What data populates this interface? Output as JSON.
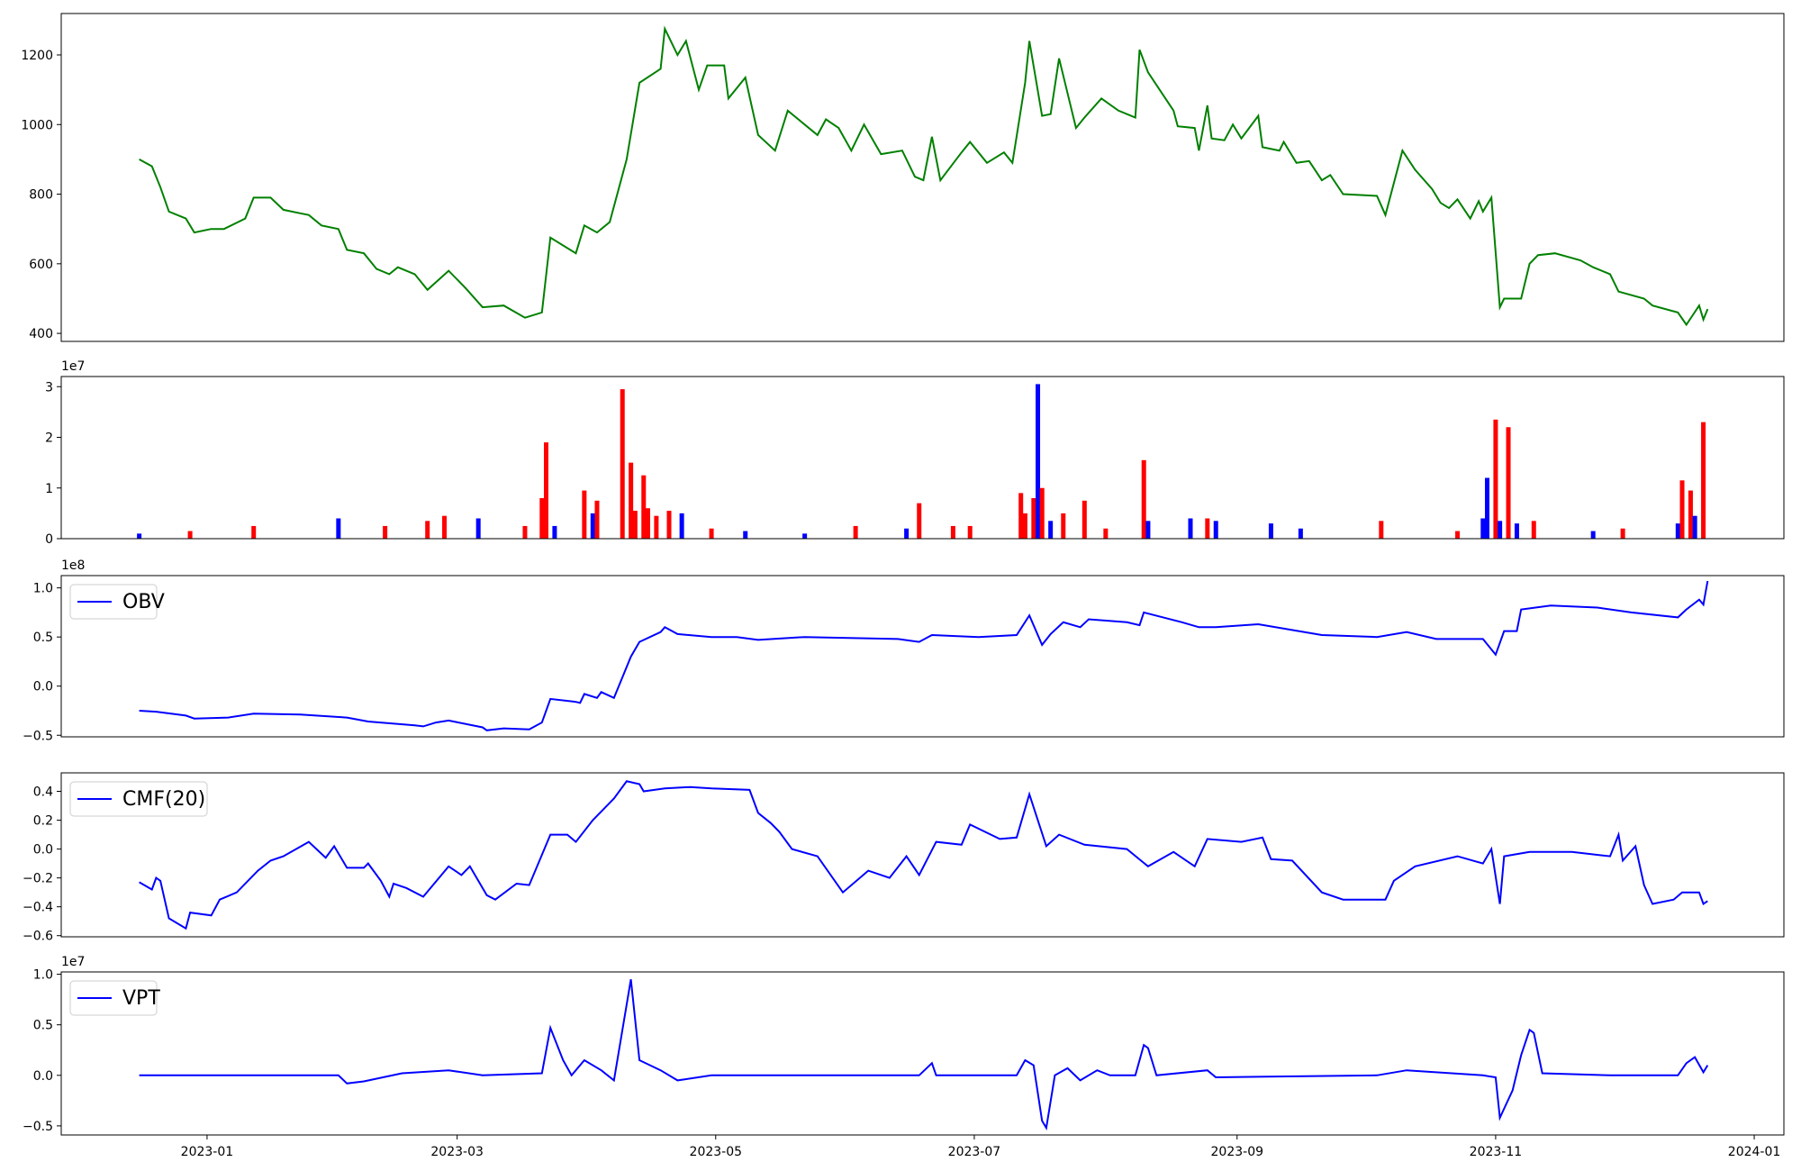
{
  "chart_data": [
    {
      "type": "line",
      "color": "#008000",
      "xlim": [
        -34.4,
        372
      ],
      "ylim": [
        377,
        1319
      ],
      "yticks": [
        400,
        600,
        800,
        1000,
        1200
      ],
      "x": [
        -16,
        -13,
        -11,
        -9,
        -5,
        -3,
        1,
        4,
        9,
        11,
        15,
        18,
        22,
        24,
        27,
        31,
        33,
        37,
        40,
        43,
        45,
        49,
        52,
        57,
        61,
        65,
        70,
        75,
        79,
        81,
        87,
        89,
        92,
        95,
        99,
        102,
        107,
        108,
        111,
        113,
        116,
        118,
        122,
        123,
        127,
        130,
        134,
        137,
        141,
        144,
        146,
        149,
        152,
        155,
        159,
        164,
        167,
        169,
        171,
        173,
        178,
        180,
        184,
        188,
        190,
        193,
        194,
        197,
        199,
        201,
        205,
        207,
        211,
        215,
        219,
        220,
        222,
        228,
        229,
        233,
        234,
        236,
        237,
        240,
        242,
        244,
        248,
        249,
        253,
        254,
        257,
        260,
        263,
        265,
        268,
        276,
        278,
        282,
        285,
        289,
        291,
        293,
        295,
        298,
        300,
        301,
        303,
        305,
        306,
        310,
        312,
        314,
        318,
        324,
        327,
        331,
        333,
        339,
        341,
        347,
        349,
        352,
        353,
        354
      ],
      "values": [
        900,
        880,
        820,
        750,
        730,
        690,
        700,
        700,
        730,
        790,
        790,
        755,
        745,
        740,
        710,
        700,
        640,
        630,
        585,
        570,
        590,
        570,
        525,
        580,
        530,
        475,
        480,
        445,
        460,
        675,
        630,
        710,
        690,
        720,
        900,
        1120,
        1160,
        1275,
        1200,
        1240,
        1100,
        1170,
        1170,
        1075,
        1135,
        970,
        925,
        1040,
        1000,
        970,
        1015,
        990,
        925,
        1000,
        915,
        925,
        850,
        840,
        965,
        840,
        920,
        950,
        890,
        920,
        890,
        1120,
        1240,
        1025,
        1030,
        1190,
        990,
        1020,
        1075,
        1040,
        1020,
        1215,
        1150,
        1040,
        995,
        990,
        925,
        1055,
        960,
        955,
        1000,
        960,
        1025,
        935,
        925,
        950,
        890,
        895,
        840,
        855,
        800,
        795,
        740,
        925,
        870,
        815,
        775,
        760,
        785,
        730,
        780,
        750,
        790,
        475,
        500,
        500,
        600,
        625,
        630,
        610,
        590,
        570,
        520,
        500,
        480,
        460,
        425,
        480,
        440,
        470
      ]
    },
    {
      "type": "bar",
      "offset_label": "1e7",
      "xlim": [
        -34.4,
        372
      ],
      "ylim": [
        0,
        3.2
      ],
      "yticks": [
        0,
        1,
        2,
        3
      ],
      "x": [
        -16,
        -4,
        11,
        31,
        42,
        52,
        56,
        64,
        75,
        79,
        80,
        82,
        89,
        91,
        92,
        98,
        100,
        101,
        103,
        104,
        106,
        109,
        112,
        119,
        127,
        141,
        153,
        165,
        168,
        176,
        180,
        192,
        193,
        195,
        196,
        197,
        199,
        202,
        207,
        212,
        221,
        222,
        232,
        236,
        238,
        251,
        258,
        277,
        295,
        301,
        302,
        304,
        305,
        307,
        309,
        313,
        327,
        334,
        347,
        348,
        350,
        351,
        353
      ],
      "values": [
        0.1,
        0.15,
        0.25,
        0.4,
        0.25,
        0.35,
        0.45,
        0.4,
        0.25,
        0.8,
        1.9,
        0.25,
        0.95,
        0.5,
        0.75,
        2.95,
        1.5,
        0.55,
        1.25,
        0.6,
        0.45,
        0.55,
        0.5,
        0.2,
        0.15,
        0.1,
        0.25,
        0.2,
        0.7,
        0.25,
        0.25,
        0.9,
        0.5,
        0.8,
        3.05,
        1.0,
        0.35,
        0.5,
        0.75,
        0.2,
        1.55,
        0.35,
        0.4,
        0.4,
        0.35,
        0.3,
        0.2,
        0.35,
        0.15,
        0.4,
        1.2,
        2.35,
        0.35,
        2.2,
        0.3,
        0.35,
        0.15,
        0.2,
        0.3,
        1.15,
        0.95,
        0.45,
        2.3
      ],
      "colors": [
        "#0000ff",
        "#ff0000",
        "#ff0000",
        "#0000ff",
        "#ff0000",
        "#ff0000",
        "#ff0000",
        "#0000ff",
        "#ff0000",
        "#ff0000",
        "#ff0000",
        "#0000ff",
        "#ff0000",
        "#0000ff",
        "#ff0000",
        "#ff0000",
        "#ff0000",
        "#ff0000",
        "#ff0000",
        "#ff0000",
        "#ff0000",
        "#ff0000",
        "#0000ff",
        "#ff0000",
        "#0000ff",
        "#0000ff",
        "#ff0000",
        "#0000ff",
        "#ff0000",
        "#ff0000",
        "#ff0000",
        "#ff0000",
        "#ff0000",
        "#ff0000",
        "#0000ff",
        "#ff0000",
        "#0000ff",
        "#ff0000",
        "#ff0000",
        "#ff0000",
        "#ff0000",
        "#0000ff",
        "#0000ff",
        "#ff0000",
        "#0000ff",
        "#0000ff",
        "#0000ff",
        "#ff0000",
        "#ff0000",
        "#0000ff",
        "#0000ff",
        "#ff0000",
        "#0000ff",
        "#ff0000",
        "#0000ff",
        "#ff0000",
        "#0000ff",
        "#ff0000",
        "#0000ff",
        "#ff0000",
        "#ff0000",
        "#0000ff",
        "#ff0000"
      ]
    },
    {
      "type": "line",
      "offset_label": "1e8",
      "legend": "upper left",
      "xlim": [
        -34.4,
        372
      ],
      "ylim": [
        -0.516,
        1.125
      ],
      "yticks": [
        {
          "value": -0.5,
          "label": "−0.5"
        },
        {
          "value": 0,
          "label": "0.0"
        },
        0.5,
        {
          "value": 1,
          "label": "1.0"
        }
      ],
      "x": [
        -16,
        -12,
        -5,
        -3,
        5,
        11,
        22,
        33,
        38,
        49,
        51,
        54,
        57,
        65,
        66,
        70,
        76,
        79,
        81,
        87,
        88,
        89,
        92,
        93,
        96,
        100,
        102,
        107,
        108,
        111,
        119,
        125,
        130,
        141,
        163,
        168,
        171,
        182,
        191,
        194,
        197,
        199,
        202,
        206,
        208,
        217,
        220,
        221,
        230,
        234,
        238,
        248,
        263,
        276,
        283,
        290,
        301,
        304,
        306,
        309,
        310,
        317,
        328,
        336,
        347,
        349,
        352,
        353,
        354
      ],
      "series": [
        {
          "name": "OBV",
          "color": "#0000ff",
          "values": [
            -0.25,
            -0.26,
            -0.3,
            -0.33,
            -0.32,
            -0.28,
            -0.29,
            -0.32,
            -0.36,
            -0.4,
            -0.41,
            -0.37,
            -0.35,
            -0.42,
            -0.45,
            -0.43,
            -0.44,
            -0.37,
            -0.13,
            -0.16,
            -0.17,
            -0.08,
            -0.12,
            -0.06,
            -0.12,
            0.3,
            0.45,
            0.55,
            0.6,
            0.53,
            0.5,
            0.5,
            0.47,
            0.5,
            0.48,
            0.45,
            0.52,
            0.5,
            0.52,
            0.72,
            0.42,
            0.53,
            0.65,
            0.6,
            0.68,
            0.65,
            0.62,
            0.75,
            0.65,
            0.6,
            0.6,
            0.63,
            0.52,
            0.5,
            0.55,
            0.48,
            0.48,
            0.32,
            0.56,
            0.56,
            0.78,
            0.82,
            0.8,
            0.75,
            0.7,
            0.78,
            0.88,
            0.83,
            1.07
          ]
        }
      ]
    },
    {
      "type": "line",
      "legend": "upper left",
      "xlim": [
        -34.4,
        372
      ],
      "ylim": [
        -0.608,
        0.528
      ],
      "yticks": [
        {
          "value": -0.6,
          "label": "−0.6"
        },
        {
          "value": -0.4,
          "label": "−0.4"
        },
        {
          "value": -0.2,
          "label": "−0.2"
        },
        {
          "value": 0,
          "label": "0.0"
        },
        0.2,
        0.4
      ],
      "x": [
        -16,
        -13,
        -12,
        -11,
        -9,
        -5,
        -4,
        1,
        3,
        7,
        12,
        15,
        18,
        24,
        28,
        30,
        33,
        37,
        38,
        41,
        43,
        44,
        47,
        51,
        57,
        60,
        62,
        66,
        68,
        73,
        76,
        81,
        85,
        87,
        91,
        96,
        99,
        102,
        103,
        108,
        114,
        119,
        128,
        130,
        133,
        135,
        138,
        144,
        150,
        156,
        161,
        165,
        168,
        172,
        178,
        180,
        187,
        191,
        194,
        198,
        201,
        207,
        217,
        222,
        228,
        233,
        236,
        244,
        249,
        251,
        256,
        263,
        268,
        278,
        280,
        285,
        295,
        301,
        303,
        305,
        306,
        312,
        322,
        331,
        333,
        334,
        337,
        339,
        341,
        346,
        348,
        352,
        353,
        354
      ],
      "series": [
        {
          "name": "CMF(20)",
          "color": "#0000ff",
          "values": [
            -0.23,
            -0.28,
            -0.2,
            -0.22,
            -0.48,
            -0.55,
            -0.44,
            -0.46,
            -0.35,
            -0.3,
            -0.15,
            -0.08,
            -0.05,
            0.05,
            -0.06,
            0.02,
            -0.13,
            -0.13,
            -0.1,
            -0.22,
            -0.33,
            -0.24,
            -0.27,
            -0.33,
            -0.12,
            -0.18,
            -0.12,
            -0.32,
            -0.35,
            -0.24,
            -0.25,
            0.1,
            0.1,
            0.05,
            0.2,
            0.35,
            0.47,
            0.45,
            0.4,
            0.42,
            0.43,
            0.42,
            0.41,
            0.25,
            0.18,
            0.12,
            0.0,
            -0.05,
            -0.3,
            -0.15,
            -0.2,
            -0.05,
            -0.18,
            0.05,
            0.03,
            0.17,
            0.07,
            0.08,
            0.38,
            0.02,
            0.1,
            0.03,
            0.0,
            -0.12,
            -0.02,
            -0.12,
            0.07,
            0.05,
            0.08,
            -0.07,
            -0.08,
            -0.3,
            -0.35,
            -0.35,
            -0.22,
            -0.12,
            -0.05,
            -0.1,
            0.0,
            -0.38,
            -0.05,
            -0.02,
            -0.02,
            -0.05,
            0.1,
            -0.08,
            0.02,
            -0.25,
            -0.38,
            -0.35,
            -0.3,
            -0.3,
            -0.38,
            -0.36
          ]
        }
      ]
    },
    {
      "type": "line",
      "offset_label": "1e7",
      "legend": "upper left",
      "xlim": [
        -34.4,
        372
      ],
      "ylim": [
        -0.59,
        1.023
      ],
      "yticks": [
        {
          "value": -0.5,
          "label": "−0.5"
        },
        {
          "value": 0,
          "label": "0.0"
        },
        0.5,
        {
          "value": 1,
          "label": "1.0"
        }
      ],
      "xticks": [
        {
          "value": 0,
          "label": "2023-01"
        },
        {
          "value": 59,
          "label": "2023-03"
        },
        {
          "value": 120,
          "label": "2023-05"
        },
        {
          "value": 181,
          "label": "2023-07"
        },
        {
          "value": 243,
          "label": "2023-09"
        },
        {
          "value": 304,
          "label": "2023-11"
        },
        {
          "value": 365,
          "label": "2024-01"
        }
      ],
      "x": [
        -16,
        5,
        31,
        33,
        37,
        46,
        57,
        65,
        79,
        81,
        84,
        86,
        89,
        93,
        96,
        100,
        102,
        107,
        111,
        119,
        168,
        171,
        172,
        191,
        193,
        195,
        197,
        198,
        200,
        203,
        206,
        210,
        213,
        219,
        221,
        222,
        224,
        236,
        238,
        276,
        283,
        301,
        304,
        305,
        308,
        310,
        312,
        313,
        315,
        331,
        347,
        349,
        351,
        353,
        354
      ],
      "series": [
        {
          "name": "VPT",
          "color": "#0000ff",
          "values": [
            0.0,
            0.0,
            0.0,
            -0.08,
            -0.06,
            0.02,
            0.05,
            0.0,
            0.02,
            0.47,
            0.15,
            0.0,
            0.15,
            0.05,
            -0.05,
            0.95,
            0.15,
            0.05,
            -0.05,
            0.0,
            0.0,
            0.12,
            0.0,
            0.0,
            0.15,
            0.1,
            -0.45,
            -0.52,
            0.0,
            0.07,
            -0.05,
            0.05,
            0.0,
            0.0,
            0.3,
            0.27,
            0.0,
            0.05,
            -0.02,
            0.0,
            0.05,
            0.0,
            -0.02,
            -0.42,
            -0.15,
            0.2,
            0.45,
            0.42,
            0.02,
            0.0,
            0.0,
            0.12,
            0.18,
            0.03,
            0.1
          ]
        }
      ]
    }
  ]
}
